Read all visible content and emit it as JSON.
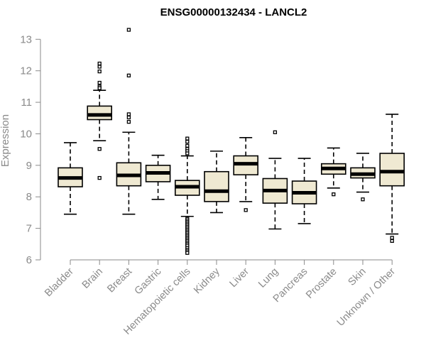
{
  "chart_data": {
    "type": "boxplot",
    "title": "ENSG00000132434 - LANCL2",
    "ylabel": "Expression",
    "xlabel": "",
    "ylim": [
      6,
      13.3
    ],
    "yticks": [
      6,
      7,
      8,
      9,
      10,
      11,
      12,
      13
    ],
    "grid": false,
    "box_fill": "#efe9d2",
    "box_stroke": "#000000",
    "categories": [
      "Bladder",
      "Brain",
      "Breast",
      "Gastric",
      "Hematopoietic cells",
      "Kidney",
      "Liver",
      "Lung",
      "Pancreas",
      "Prostate",
      "Skin",
      "Unknown / Other"
    ],
    "boxes": [
      {
        "whislo": 7.45,
        "q1": 8.32,
        "med": 8.6,
        "q3": 8.92,
        "whishi": 9.72,
        "fliers": []
      },
      {
        "whislo": 9.78,
        "q1": 10.45,
        "med": 10.6,
        "q3": 10.88,
        "whishi": 11.38,
        "fliers": [
          12.23,
          12.13,
          11.98,
          11.62,
          11.5,
          11.45,
          9.52,
          8.6
        ]
      },
      {
        "whislo": 7.45,
        "q1": 8.35,
        "med": 8.68,
        "q3": 9.08,
        "whishi": 10.05,
        "fliers": [
          13.3,
          11.85,
          10.62,
          10.52,
          10.38
        ]
      },
      {
        "whislo": 7.92,
        "q1": 8.48,
        "med": 8.76,
        "q3": 9.0,
        "whishi": 9.32,
        "fliers": []
      },
      {
        "whislo": 7.38,
        "q1": 8.05,
        "med": 8.32,
        "q3": 8.52,
        "whishi": 9.3,
        "fliers": [
          9.85,
          9.75,
          9.62,
          9.52,
          9.45,
          9.38,
          7.3,
          7.25,
          7.2,
          7.15,
          7.1,
          7.05,
          7.0,
          6.95,
          6.9,
          6.85,
          6.8,
          6.75,
          6.7,
          6.65,
          6.6,
          6.55,
          6.5,
          6.45,
          6.38,
          6.32,
          6.27,
          6.22
        ]
      },
      {
        "whislo": 7.5,
        "q1": 7.85,
        "med": 8.18,
        "q3": 8.8,
        "whishi": 9.45,
        "fliers": []
      },
      {
        "whislo": 7.85,
        "q1": 8.7,
        "med": 9.05,
        "q3": 9.3,
        "whishi": 9.88,
        "fliers": [
          7.58
        ]
      },
      {
        "whislo": 6.98,
        "q1": 7.8,
        "med": 8.2,
        "q3": 8.58,
        "whishi": 9.22,
        "fliers": [
          10.05
        ]
      },
      {
        "whislo": 7.15,
        "q1": 7.78,
        "med": 8.13,
        "q3": 8.5,
        "whishi": 9.22,
        "fliers": []
      },
      {
        "whislo": 8.28,
        "q1": 8.72,
        "med": 8.9,
        "q3": 9.05,
        "whishi": 9.55,
        "fliers": [
          8.08
        ]
      },
      {
        "whislo": 8.15,
        "q1": 8.6,
        "med": 8.72,
        "q3": 8.92,
        "whishi": 9.38,
        "fliers": [
          7.92
        ]
      },
      {
        "whislo": 6.82,
        "q1": 8.35,
        "med": 8.8,
        "q3": 9.38,
        "whishi": 10.62,
        "fliers": [
          6.7,
          6.6
        ]
      }
    ]
  }
}
